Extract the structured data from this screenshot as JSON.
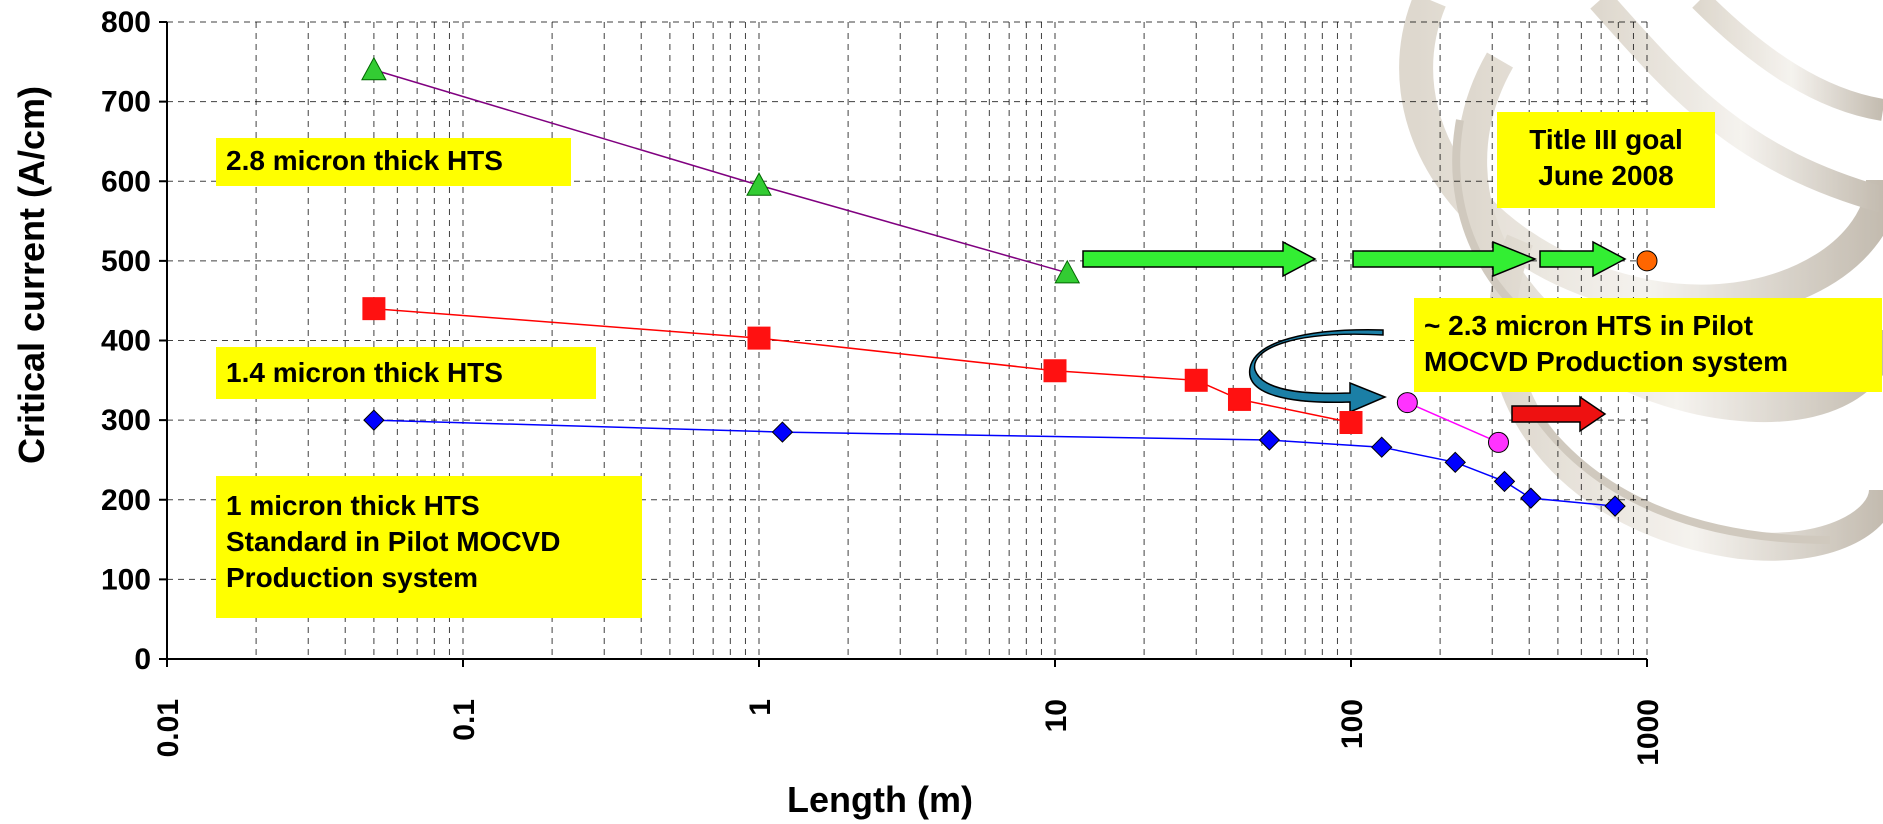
{
  "chart_data": {
    "type": "scatter",
    "xlabel": "Length (m)",
    "ylabel": "Critical current (A/cm)",
    "xscale": "log",
    "xlim": [
      0.01,
      1000
    ],
    "ylim": [
      0,
      800
    ],
    "xticks": [
      "0.01",
      "0.1",
      "1",
      "10",
      "100",
      "1000"
    ],
    "yticks": [
      "0",
      "100",
      "200",
      "300",
      "400",
      "500",
      "600",
      "700",
      "800"
    ],
    "grid": "dashed",
    "series": [
      {
        "marker": "triangle",
        "color": "#33cc33",
        "line_color": "#800080",
        "points": [
          [
            0.05,
            740
          ],
          [
            1,
            595
          ],
          [
            11,
            485
          ]
        ]
      },
      {
        "marker": "square",
        "color": "#ff1111",
        "line_color": "#ff0000",
        "points": [
          [
            0.05,
            440
          ],
          [
            1,
            403
          ],
          [
            10,
            362
          ],
          [
            30,
            350
          ],
          [
            42,
            326
          ],
          [
            100,
            297
          ]
        ]
      },
      {
        "marker": "diamond",
        "color": "#0000ff",
        "line_color": "#0000ff",
        "points": [
          [
            0.05,
            300
          ],
          [
            1.2,
            285
          ],
          [
            53,
            275
          ],
          [
            127,
            266
          ],
          [
            225,
            247
          ],
          [
            330,
            223
          ],
          [
            405,
            202
          ],
          [
            780,
            192
          ]
        ]
      },
      {
        "marker": "circle",
        "color": "#ff33ff",
        "line_color": "#ff00ff",
        "points": [
          [
            155,
            322
          ],
          [
            315,
            272
          ]
        ]
      },
      {
        "marker": "circle",
        "color": "#ff6600",
        "line_color": "none",
        "points": [
          [
            1000,
            500
          ]
        ]
      }
    ],
    "annotations": [
      {
        "id": "label_28",
        "text": "2.8 micron thick HTS"
      },
      {
        "id": "label_14",
        "text": "1.4 micron thick HTS"
      },
      {
        "id": "label_1",
        "text": "1 micron thick HTS\nStandard in Pilot MOCVD\nProduction system"
      },
      {
        "id": "label_goal",
        "text": "Title III goal\nJune 2008"
      },
      {
        "id": "label_23",
        "text": "~ 2.3 micron HTS in Pilot\nMOCVD Production system"
      }
    ],
    "arrow_colors": {
      "green": "#33ee33",
      "red": "#ee1111",
      "curved": "#1b7fa6"
    }
  }
}
